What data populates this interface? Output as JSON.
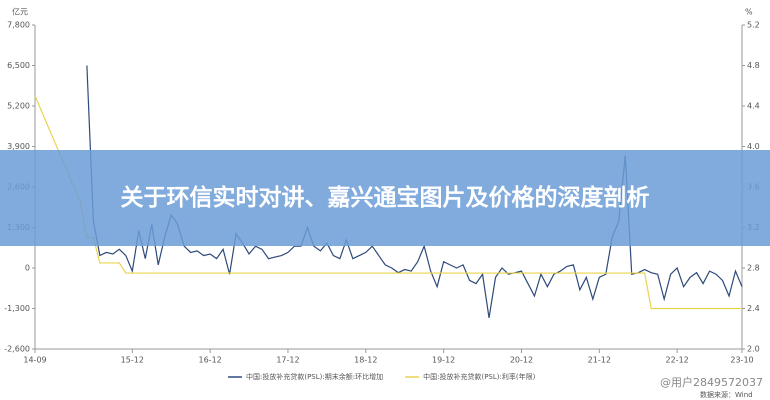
{
  "chart_data": {
    "type": "line",
    "title": "关于环信实时对讲、嘉兴通宝图片及价格的深度剖析",
    "y_label": "亿元",
    "y2_label": "%",
    "categories": [
      "14-09",
      null,
      null,
      null,
      null,
      null,
      null,
      null,
      null,
      null,
      null,
      null,
      null,
      null,
      null,
      "15-12",
      null,
      null,
      null,
      null,
      null,
      null,
      null,
      null,
      null,
      null,
      null,
      "16-12",
      null,
      null,
      null,
      null,
      null,
      null,
      null,
      null,
      null,
      null,
      null,
      "17-12",
      null,
      null,
      null,
      null,
      null,
      null,
      null,
      null,
      null,
      null,
      null,
      "18-12",
      null,
      null,
      null,
      null,
      null,
      null,
      null,
      null,
      null,
      null,
      null,
      "19-12",
      null,
      null,
      null,
      null,
      null,
      null,
      null,
      null,
      null,
      null,
      null,
      "20-12",
      null,
      null,
      null,
      null,
      null,
      null,
      null,
      null,
      null,
      null,
      null,
      "21-12",
      null,
      null,
      null,
      null,
      null,
      null,
      null,
      null,
      null,
      null,
      null,
      "22-12",
      null,
      null,
      null,
      null,
      null,
      null,
      null,
      null,
      null,
      "23-10"
    ],
    "series": [
      {
        "name": "中国:投放补充贷款(PSL):期末余额:环比增加",
        "color": "#2e4a7a",
        "values": [
          null,
          null,
          null,
          null,
          null,
          null,
          null,
          null,
          6500,
          1500,
          400,
          500,
          450,
          600,
          400,
          -100,
          1200,
          300,
          1400,
          100,
          1000,
          1700,
          1400,
          700,
          500,
          550,
          400,
          450,
          300,
          600,
          -200,
          1100,
          800,
          450,
          700,
          600,
          300,
          350,
          400,
          500,
          700,
          700,
          1300,
          700,
          550,
          800,
          400,
          300,
          900,
          300,
          400,
          500,
          700,
          400,
          100,
          0,
          -150,
          -50,
          -100,
          200,
          700,
          -100,
          -600,
          200,
          100,
          0,
          100,
          -400,
          -500,
          -200,
          -1600,
          -300,
          0,
          -200,
          -150,
          -100,
          -500,
          -900,
          -200,
          -600,
          -200,
          -100,
          50,
          100,
          -700,
          -300,
          -1000,
          -300,
          -200,
          1000,
          1500,
          3600,
          -200,
          -150,
          -50,
          -150,
          -200,
          -1000,
          -200,
          0,
          -600,
          -300,
          -150,
          -500,
          -100,
          -200,
          -400,
          -900,
          -100,
          -600
        ]
      },
      {
        "name": "中国:投放补充贷款(PSL):利率(年限)",
        "color": "#e8d44d",
        "axis": "y2",
        "values": [
          4.5,
          4.35,
          4.2,
          4.05,
          3.9,
          3.75,
          3.6,
          3.45,
          3.1,
          3.1,
          2.85,
          2.85,
          2.85,
          2.85,
          2.75,
          2.75,
          2.75,
          2.75,
          2.75,
          2.75,
          2.75,
          2.75,
          2.75,
          2.75,
          2.75,
          2.75,
          2.75,
          2.75,
          2.75,
          2.75,
          2.75,
          2.75,
          2.75,
          2.75,
          2.75,
          2.75,
          2.75,
          2.75,
          2.75,
          2.75,
          2.75,
          2.75,
          2.75,
          2.75,
          2.75,
          2.75,
          2.75,
          2.75,
          2.75,
          2.75,
          2.75,
          2.75,
          2.75,
          2.75,
          2.75,
          2.75,
          2.75,
          2.75,
          2.75,
          2.75,
          2.75,
          2.75,
          2.75,
          2.75,
          2.75,
          2.75,
          2.75,
          2.75,
          2.75,
          2.75,
          2.75,
          2.75,
          2.75,
          2.75,
          2.75,
          2.75,
          2.75,
          2.75,
          2.75,
          2.75,
          2.75,
          2.75,
          2.75,
          2.75,
          2.75,
          2.75,
          2.75,
          2.75,
          2.75,
          2.75,
          2.75,
          2.75,
          2.75,
          2.75,
          2.75,
          2.4,
          2.4,
          2.4,
          2.4,
          2.4,
          2.4,
          2.4,
          2.4,
          2.4,
          2.4,
          2.4,
          2.4,
          2.4,
          2.4,
          2.4
        ]
      }
    ],
    "ylim": [
      -2600,
      7800
    ],
    "yticks": [
      {
        "value": -2600,
        "label": "-2,600"
      },
      {
        "value": -1300,
        "label": "-1,300"
      },
      0,
      {
        "value": 1300,
        "label": "1,300"
      },
      {
        "value": 2600,
        "label": "2,600"
      },
      {
        "value": 3900,
        "label": "3,900"
      },
      {
        "value": 5200,
        "label": "5,200"
      },
      {
        "value": 6500,
        "label": "6,500"
      },
      {
        "value": 7800,
        "label": "7,800"
      }
    ],
    "y2lim": [
      2.0,
      5.2
    ],
    "y2ticks": [
      {
        "value": 2,
        "label": "2.0"
      },
      2.4,
      2.8,
      3.2,
      3.6,
      {
        "value": 4,
        "label": "4.0"
      },
      4.4,
      4.8,
      5.2
    ],
    "grid": false,
    "watermark": "@用户2849572037",
    "source": "数据来源：Wind"
  }
}
